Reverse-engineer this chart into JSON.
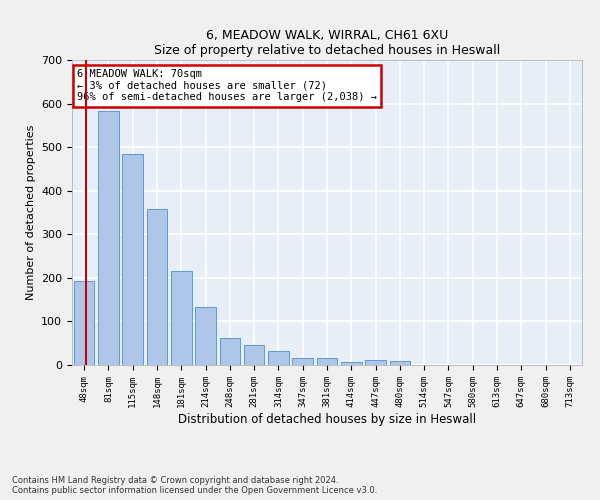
{
  "title": "6, MEADOW WALK, WIRRAL, CH61 6XU",
  "subtitle": "Size of property relative to detached houses in Heswall",
  "xlabel": "Distribution of detached houses by size in Heswall",
  "ylabel": "Number of detached properties",
  "categories": [
    "48sqm",
    "81sqm",
    "115sqm",
    "148sqm",
    "181sqm",
    "214sqm",
    "248sqm",
    "281sqm",
    "314sqm",
    "347sqm",
    "381sqm",
    "414sqm",
    "447sqm",
    "480sqm",
    "514sqm",
    "547sqm",
    "580sqm",
    "613sqm",
    "647sqm",
    "680sqm",
    "713sqm"
  ],
  "values": [
    192,
    583,
    485,
    358,
    215,
    132,
    63,
    45,
    31,
    16,
    16,
    8,
    11,
    9,
    0,
    0,
    0,
    0,
    0,
    0,
    0
  ],
  "bar_color": "#aec6e8",
  "bar_edge_color": "#5b9bd5",
  "annotation_text": "6 MEADOW WALK: 70sqm\n← 3% of detached houses are smaller (72)\n96% of semi-detached houses are larger (2,038) →",
  "annotation_box_color": "#ffffff",
  "annotation_box_edge_color": "#cc0000",
  "vline_color": "#cc0000",
  "bg_color": "#e8eef7",
  "grid_color": "#ffffff",
  "fig_bg_color": "#f0f0f0",
  "footer": "Contains HM Land Registry data © Crown copyright and database right 2024.\nContains public sector information licensed under the Open Government Licence v3.0.",
  "ylim": [
    0,
    700
  ],
  "yticks": [
    0,
    100,
    200,
    300,
    400,
    500,
    600,
    700
  ]
}
